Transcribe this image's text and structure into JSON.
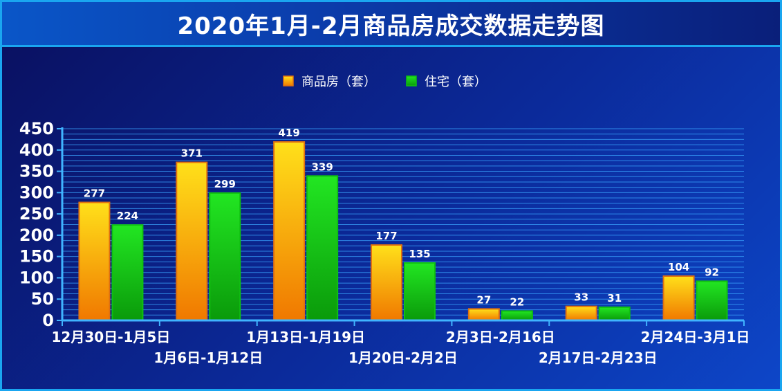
{
  "title": "2020年1月-2月商品房成交数据走势图",
  "colors": {
    "series1_top": "#ffe01a",
    "series1_bottom": "#f07800",
    "series1_border": "#e07010",
    "series2_top": "#22e622",
    "series2_bottom": "#0a9a0a",
    "series2_border": "#10c010",
    "grid": "#3aa6ff",
    "axis": "#40b4ff"
  },
  "chart_data": {
    "type": "bar",
    "categories": [
      "12月30日-1月5日",
      "1月6日-1月12日",
      "1月13日-1月19日",
      "1月20日-2月2日",
      "2月3日-2月16日",
      "2月17日-2月23日",
      "2月24日-3月1日"
    ],
    "series": [
      {
        "name": "商品房（套）",
        "values": [
          277,
          371,
          419,
          177,
          27,
          33,
          104
        ]
      },
      {
        "name": "住宅（套）",
        "values": [
          224,
          299,
          339,
          135,
          22,
          31,
          92
        ]
      }
    ],
    "ylim": [
      0,
      450
    ],
    "yticks": [
      0,
      50,
      100,
      150,
      200,
      250,
      300,
      350,
      400,
      450
    ],
    "grid": true,
    "legend": "top-center"
  }
}
